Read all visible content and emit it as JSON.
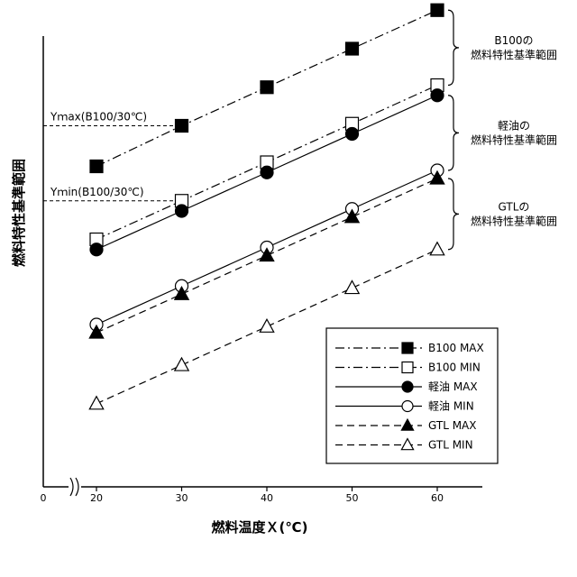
{
  "chart_data": {
    "type": "line",
    "title": "",
    "xlabel": "燃料温度Ｘ(℃)",
    "ylabel": "燃料特性基準範囲",
    "x_origin_label": "0",
    "x": [
      20,
      30,
      40,
      50,
      60
    ],
    "xticks": [
      "20",
      "30",
      "40",
      "50",
      "60"
    ],
    "xlim": [
      15,
      65
    ],
    "ylim": [
      0,
      12
    ],
    "y_tick_labels": false,
    "grid": false,
    "legend_position": "bottom-right",
    "series": [
      {
        "name": "B100 MAX",
        "marker": "square-filled",
        "dash": "dash-dot",
        "values": [
          7.9,
          8.9,
          9.85,
          10.8,
          11.75
        ]
      },
      {
        "name": "B100 MIN",
        "marker": "square-open",
        "dash": "dash-dot",
        "values": [
          6.1,
          7.05,
          8.0,
          8.95,
          9.9
        ]
      },
      {
        "name": "軽油 MAX",
        "marker": "circle-filled",
        "dash": "solid",
        "values": [
          5.85,
          6.8,
          7.75,
          8.7,
          9.65
        ]
      },
      {
        "name": "軽油 MIN",
        "marker": "circle-open",
        "dash": "solid",
        "values": [
          4.0,
          4.95,
          5.9,
          6.85,
          7.8
        ]
      },
      {
        "name": "GTL MAX",
        "marker": "triangle-filled",
        "dash": "dashed",
        "values": [
          3.8,
          4.75,
          5.7,
          6.65,
          7.6
        ]
      },
      {
        "name": "GTL MIN",
        "marker": "triangle-open",
        "dash": "dashed",
        "values": [
          2.05,
          3.0,
          3.95,
          4.9,
          5.85
        ]
      }
    ],
    "annotations": {
      "ymax_label": "Yｍax(B100/30℃)",
      "ymin_label": "Yｍin(B100/30℃)",
      "ranges": [
        {
          "line1": "B100の",
          "line2": "燃料特性基準範囲"
        },
        {
          "line1": "軽油の",
          "line2": "燃料特性基準範囲"
        },
        {
          "line1": "GTLの",
          "line2": "燃料特性基準範囲"
        }
      ]
    }
  }
}
